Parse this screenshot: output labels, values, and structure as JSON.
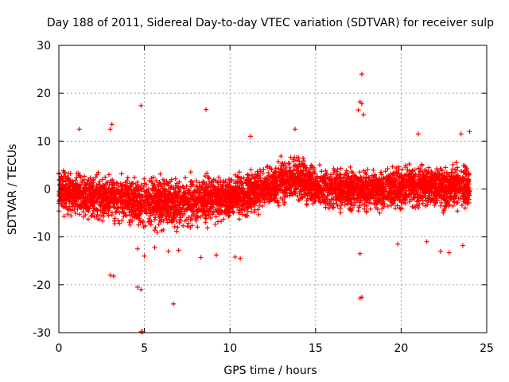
{
  "chart_data": {
    "type": "scatter",
    "title": "Day 188 of 2011, Sidereal Day-to-day VTEC variation (SDTVAR) for receiver sulp",
    "xlabel": "GPS time / hours",
    "ylabel": "SDTVAR / TECUs",
    "xlim": [
      0,
      25
    ],
    "ylim": [
      -30,
      30
    ],
    "x_ticks": [
      "0",
      "5",
      "10",
      "15",
      "20",
      "25"
    ],
    "y_ticks": [
      "-30",
      "-20",
      "-10",
      "0",
      "10",
      "20",
      "30"
    ],
    "grid": true,
    "marker": "+",
    "color": "#ff0000",
    "series": [
      {
        "name": "SDTVAR",
        "x_range": [
          0,
          24
        ],
        "envelope": {
          "x": [
            0,
            1,
            2,
            3,
            4,
            5,
            6,
            7,
            8,
            9,
            10,
            11,
            12,
            13,
            14,
            15,
            16,
            17,
            18,
            19,
            20,
            21,
            22,
            23,
            24
          ],
          "center": [
            -0.5,
            -1,
            -1.5,
            -1.5,
            -2,
            -2.5,
            -3,
            -3,
            -2.5,
            -2,
            -1.5,
            -1,
            0,
            1.5,
            2.5,
            0.5,
            0,
            0,
            0,
            0,
            0.5,
            0.5,
            0.5,
            0.5,
            0.5
          ],
          "upper": [
            6,
            5,
            4.5,
            4.5,
            4.5,
            4,
            3.5,
            3.5,
            4,
            4,
            4.5,
            5,
            6,
            7.5,
            8.5,
            6,
            5.5,
            5,
            5,
            5.5,
            6,
            6,
            6,
            6,
            6
          ],
          "lower": [
            -6,
            -7,
            -8,
            -8,
            -8.5,
            -9.5,
            -10.5,
            -10,
            -9,
            -8.5,
            -7.5,
            -7,
            -5.5,
            -4,
            -3.5,
            -5,
            -5.5,
            -5.5,
            -5.5,
            -5.5,
            -5.5,
            -5.5,
            -5.5,
            -5.5,
            -5.5
          ]
        },
        "outliers": [
          [
            17.7,
            24
          ],
          [
            17.6,
            18.2
          ],
          [
            17.7,
            17.8
          ],
          [
            17.5,
            16.5
          ],
          [
            17.8,
            15.5
          ],
          [
            4.8,
            17.4
          ],
          [
            8.6,
            16.6
          ],
          [
            1.2,
            12.5
          ],
          [
            3.1,
            13.5
          ],
          [
            3.0,
            12.5
          ],
          [
            13.8,
            12.5
          ],
          [
            24,
            12
          ],
          [
            23.5,
            11.5
          ],
          [
            21,
            11.5
          ],
          [
            11.2,
            11
          ],
          [
            3.0,
            -18
          ],
          [
            3.2,
            -18.2
          ],
          [
            4.6,
            -20.5
          ],
          [
            4.8,
            -21
          ],
          [
            6.7,
            -24
          ],
          [
            4.8,
            -29.8
          ],
          [
            4.9,
            -29.8
          ],
          [
            17.6,
            -22.8
          ],
          [
            17.7,
            -22.6
          ],
          [
            17.6,
            -13.5
          ],
          [
            22.3,
            -13
          ],
          [
            22.8,
            -13.3
          ],
          [
            10.3,
            -14.2
          ],
          [
            10.6,
            -14.5
          ],
          [
            9.2,
            -13.8
          ],
          [
            5.0,
            -14
          ],
          [
            6.4,
            -13
          ],
          [
            7.0,
            -12.8
          ],
          [
            4.6,
            -12.5
          ],
          [
            5.6,
            -12.2
          ],
          [
            8.3,
            -14.3
          ],
          [
            23.6,
            -11.8
          ],
          [
            21.5,
            -11
          ],
          [
            19.8,
            -11.5
          ]
        ]
      }
    ]
  }
}
